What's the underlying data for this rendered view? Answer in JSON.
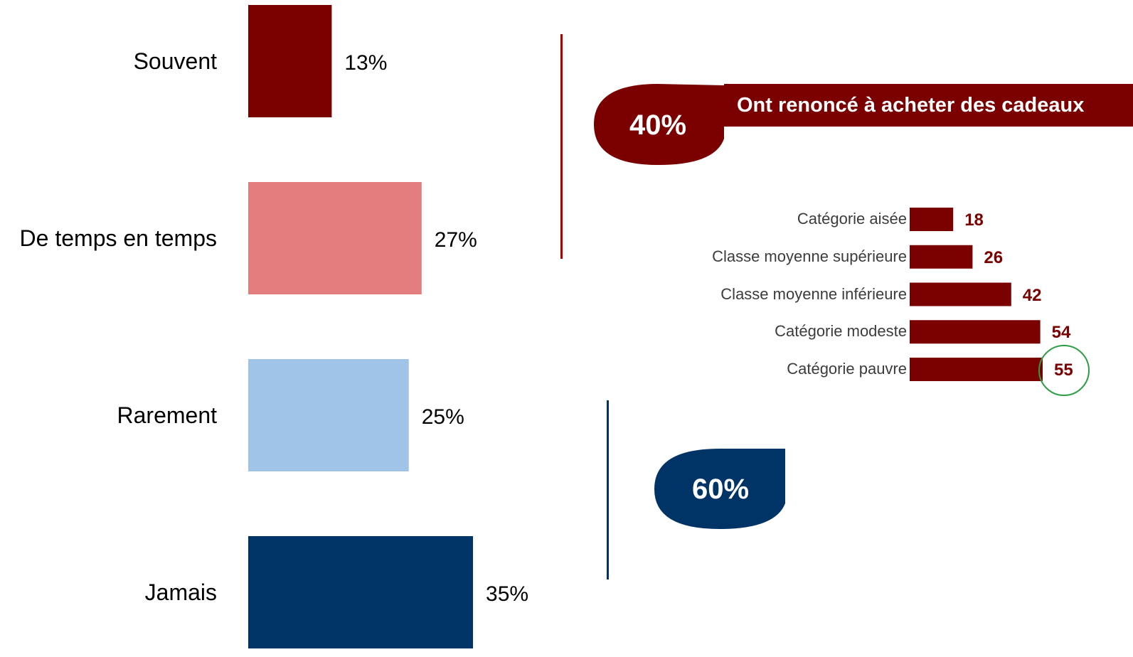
{
  "chart_data": [
    {
      "type": "bar",
      "orientation": "horizontal",
      "categories": [
        "Souvent",
        "De temps en temps",
        "Rarement",
        "Jamais"
      ],
      "values": [
        13,
        27,
        25,
        35
      ],
      "value_labels": [
        "13%",
        "27%",
        "25%",
        "35%"
      ],
      "colors": [
        "#7b0000",
        "#e47d7d",
        "#a0c4e8",
        "#003366"
      ],
      "title": "",
      "xlabel": "",
      "ylabel": "",
      "grid": false
    },
    {
      "type": "bar",
      "orientation": "horizontal",
      "title": "Ont renoncé à acheter des cadeaux",
      "categories": [
        "Catégorie aisée",
        "Classe moyenne supérieure",
        "Classe moyenne inférieure",
        "Catégorie modeste",
        "Catégorie pauvre"
      ],
      "values": [
        18,
        26,
        42,
        54,
        55
      ],
      "value_labels": [
        "18",
        "26",
        "42",
        "54",
        "55"
      ],
      "highlighted": "Catégorie pauvre",
      "color": "#7b0000",
      "highlight_color": "#2e9e46",
      "grid": false
    }
  ],
  "callouts": {
    "red": {
      "value": "40%",
      "banner": "Ont renoncé à acheter des cadeaux",
      "color": "#7b0000"
    },
    "blue": {
      "value": "60%",
      "color": "#003366"
    }
  }
}
